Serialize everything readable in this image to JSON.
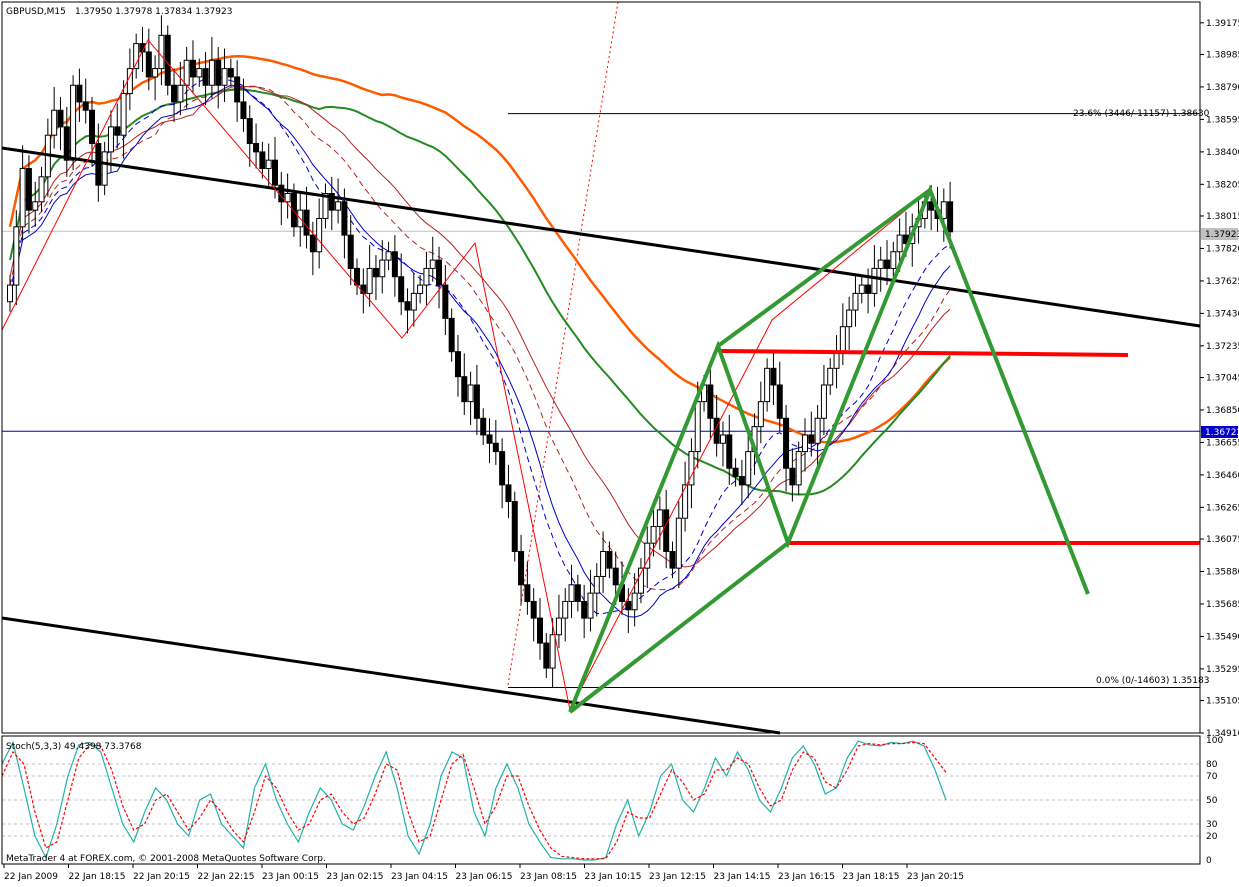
{
  "header": {
    "symbol": "GBPUSD,M15",
    "ohlc": "1.37950 1.37978 1.37834 1.37923"
  },
  "indicator_header": "Stoch(5,3,3) 49.4398 73.3768",
  "footer": "MetaTrader 4 at FOREX.com, © 2001-2008 MetaQuotes Software Corp.",
  "current_price_label": "1.37923",
  "blue_line_label": "1.36722",
  "fib": {
    "upper_label": "23.6% (3446/-11157) 1.38630",
    "lower_label": "0.0% (0/-14603) 1.35183",
    "upper_price": 1.3863,
    "lower_price": 1.35183
  },
  "colors": {
    "bull_candle": "#ffffff",
    "bear_candle": "#000000",
    "orange_ma": "#ff5a00",
    "green_ma": "#228b22",
    "zigzag": "#ff0000",
    "pattern": "#339933",
    "trendline": "#000000",
    "level_line": "#ff0000",
    "blue_level": "#0000cc",
    "stoch_main": "#20b2aa",
    "stoch_signal": "#ff0000"
  },
  "chart_data": [
    {
      "type": "candlestick",
      "title": "GBPUSD,M15",
      "ylim": [
        1.3491,
        1.393
      ],
      "y_ticks": [
        "1.39175",
        "1.38985",
        "1.38790",
        "1.38595",
        "1.38400",
        "1.38205",
        "1.38015",
        "1.37820",
        "1.37625",
        "1.37430",
        "1.37235",
        "1.37045",
        "1.36850",
        "1.36655",
        "1.36460",
        "1.36265",
        "1.36075",
        "1.35880",
        "1.35685",
        "1.35490",
        "1.35295",
        "1.35105",
        "1.34910"
      ],
      "x_ticks": [
        "22 Jan 2009",
        "22 Jan 18:15",
        "22 Jan 20:15",
        "22 Jan 22:15",
        "23 Jan 00:15",
        "23 Jan 02:15",
        "23 Jan 04:15",
        "23 Jan 06:15",
        "23 Jan 08:15",
        "23 Jan 10:15",
        "23 Jan 12:15",
        "23 Jan 14:15",
        "23 Jan 16:15",
        "23 Jan 18:15",
        "23 Jan 20:15"
      ],
      "close": [
        1.376,
        1.3795,
        1.383,
        1.3805,
        1.381,
        1.3825,
        1.385,
        1.3865,
        1.3855,
        1.3835,
        1.388,
        1.387,
        1.3865,
        1.3845,
        1.382,
        1.384,
        1.3855,
        1.385,
        1.3875,
        1.389,
        1.3905,
        1.39,
        1.3885,
        1.389,
        1.391,
        1.388,
        1.387,
        1.388,
        1.3895,
        1.3885,
        1.389,
        1.388,
        1.3895,
        1.388,
        1.389,
        1.3885,
        1.387,
        1.386,
        1.3845,
        1.384,
        1.383,
        1.3835,
        1.382,
        1.381,
        1.3815,
        1.3795,
        1.3805,
        1.379,
        1.378,
        1.38,
        1.3815,
        1.3805,
        1.381,
        1.379,
        1.377,
        1.376,
        1.3755,
        1.377,
        1.3765,
        1.3775,
        1.378,
        1.3765,
        1.375,
        1.3745,
        1.3755,
        1.376,
        1.377,
        1.3775,
        1.376,
        1.374,
        1.372,
        1.3705,
        1.369,
        1.37,
        1.368,
        1.367,
        1.3665,
        1.366,
        1.364,
        1.363,
        1.36,
        1.358,
        1.357,
        1.356,
        1.3545,
        1.353,
        1.355,
        1.356,
        1.357,
        1.358,
        1.357,
        1.356,
        1.3575,
        1.3585,
        1.36,
        1.359,
        1.358,
        1.357,
        1.3565,
        1.3575,
        1.359,
        1.3605,
        1.3615,
        1.3625,
        1.36,
        1.359,
        1.362,
        1.364,
        1.366,
        1.369,
        1.37,
        1.368,
        1.3665,
        1.367,
        1.365,
        1.3645,
        1.364,
        1.366,
        1.3675,
        1.369,
        1.371,
        1.37,
        1.368,
        1.365,
        1.364,
        1.366,
        1.367,
        1.3665,
        1.368,
        1.37,
        1.371,
        1.372,
        1.3735,
        1.3745,
        1.3755,
        1.376,
        1.3755,
        1.377,
        1.3775,
        1.377,
        1.378,
        1.379,
        1.3785,
        1.3795,
        1.38,
        1.381,
        1.3805,
        1.38,
        1.381,
        1.3792
      ]
    },
    {
      "type": "line",
      "title": "Stoch(5,3,3) 49.4398 73.3768",
      "ylim": [
        0,
        100
      ],
      "y_ticks": [
        "100",
        "80",
        "70",
        "50",
        "30",
        "20",
        "0"
      ],
      "series": [
        {
          "name": "main",
          "values": [
            80,
            98,
            60,
            20,
            2,
            30,
            70,
            96,
            98,
            90,
            60,
            30,
            15,
            40,
            60,
            50,
            30,
            20,
            50,
            55,
            30,
            20,
            10,
            60,
            80,
            50,
            30,
            15,
            40,
            60,
            50,
            30,
            25,
            45,
            70,
            90,
            60,
            20,
            5,
            30,
            70,
            90,
            85,
            40,
            20,
            60,
            80,
            60,
            30,
            15,
            2,
            1,
            1,
            0,
            0,
            2,
            30,
            50,
            20,
            40,
            70,
            80,
            50,
            40,
            60,
            85,
            70,
            90,
            75,
            50,
            40,
            60,
            85,
            95,
            80,
            55,
            60,
            85,
            99,
            96,
            95,
            98,
            97,
            99,
            95,
            75,
            50
          ]
        },
        {
          "name": "signal",
          "values": [
            70,
            90,
            80,
            40,
            10,
            15,
            50,
            85,
            96,
            95,
            75,
            45,
            25,
            30,
            50,
            55,
            40,
            25,
            35,
            50,
            40,
            25,
            15,
            40,
            70,
            60,
            40,
            25,
            30,
            50,
            55,
            40,
            30,
            35,
            55,
            80,
            75,
            40,
            15,
            20,
            50,
            80,
            88,
            60,
            30,
            45,
            70,
            70,
            45,
            25,
            10,
            3,
            2,
            1,
            1,
            1,
            15,
            40,
            35,
            35,
            55,
            75,
            65,
            50,
            55,
            75,
            75,
            85,
            80,
            60,
            45,
            50,
            75,
            90,
            85,
            65,
            60,
            75,
            95,
            97,
            96,
            97,
            97,
            98,
            97,
            85,
            73
          ]
        }
      ]
    }
  ]
}
